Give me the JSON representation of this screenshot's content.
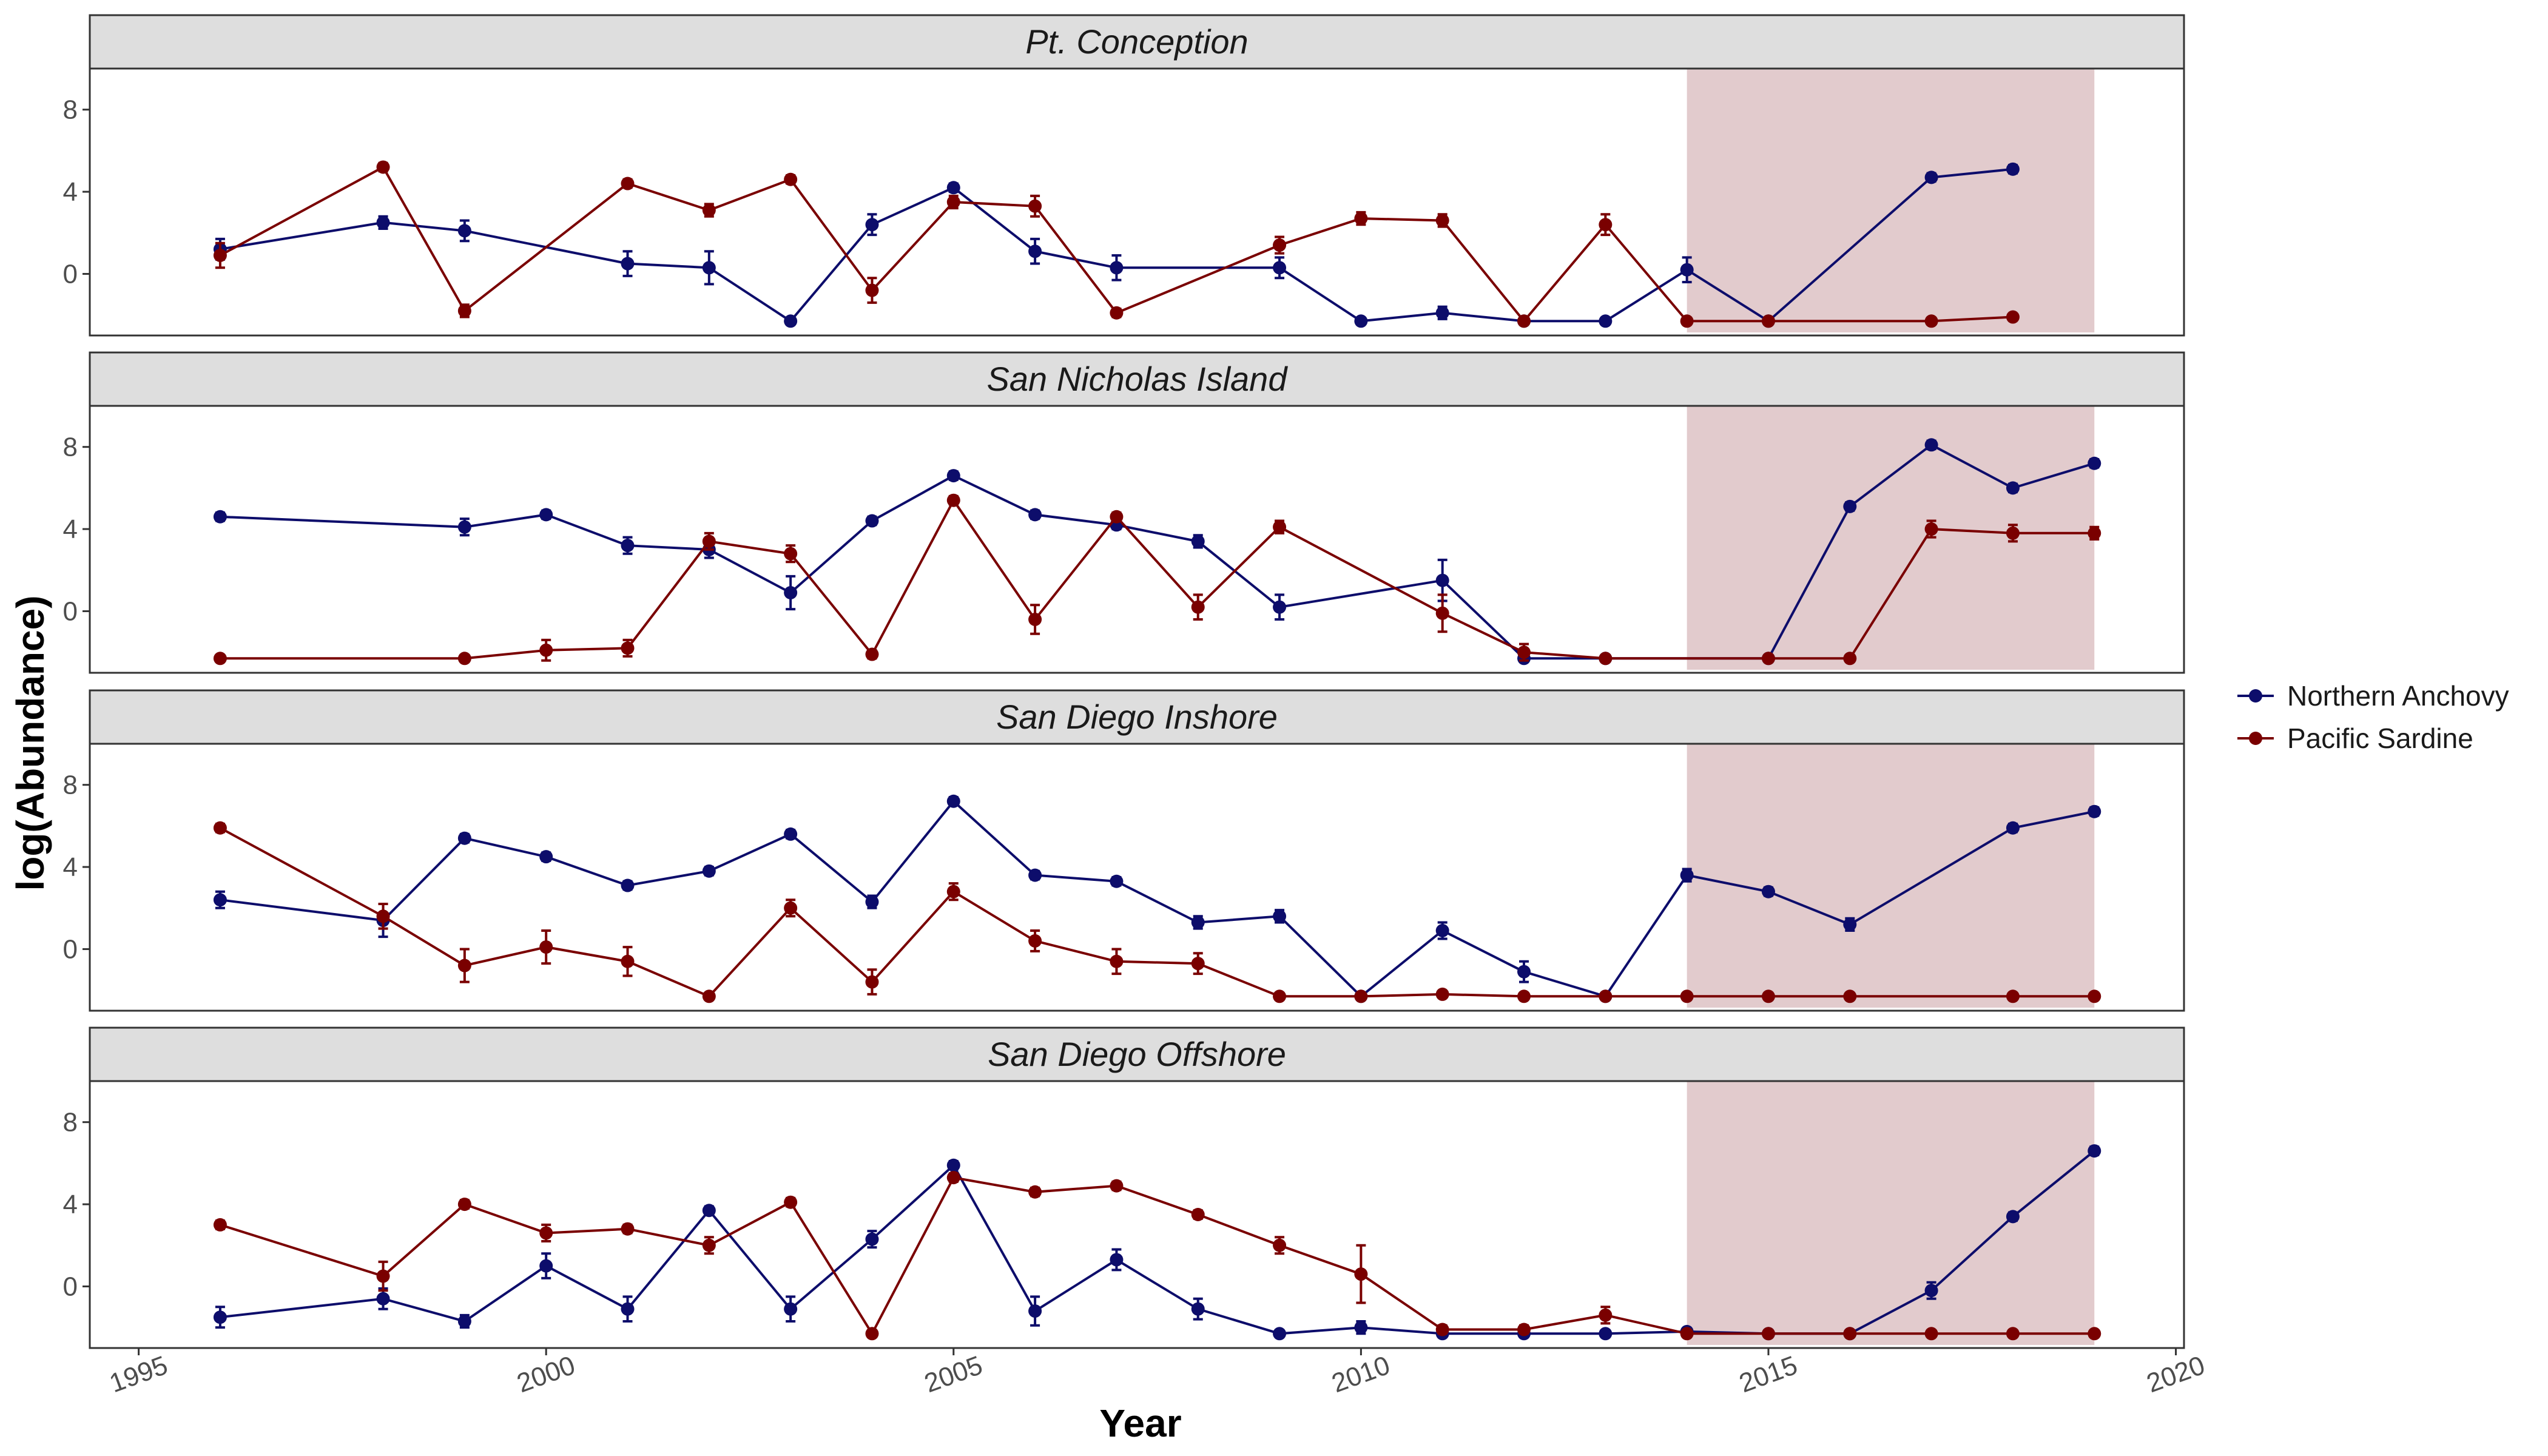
{
  "chart_data": {
    "type": "line",
    "xlabel": "Year",
    "ylabel": "log(Abundance)",
    "xlim": [
      1994.4,
      2020.1
    ],
    "ylim": [
      -3.0,
      10.0
    ],
    "x_ticks": [
      1995,
      2000,
      2005,
      2010,
      2015,
      2020
    ],
    "y_ticks": [
      0,
      4,
      8
    ],
    "shaded_region": [
      2014,
      2019
    ],
    "grid": false,
    "legend_position": "right",
    "colors": {
      "Northern Anchovy": "#0d0d6b",
      "Pacific Sardine": "#7a0000",
      "shade": "#e2cbcd",
      "strip": "#dedede"
    },
    "legend": [
      "Northern Anchovy",
      "Pacific Sardine"
    ],
    "panels": [
      {
        "name": "Pt. Conception",
        "series": [
          {
            "name": "Northern Anchovy",
            "x": [
              1996,
              1998,
              1999,
              2001,
              2002,
              2003,
              2004,
              2005,
              2006,
              2007,
              2009,
              2010,
              2011,
              2012,
              2013,
              2014,
              2015,
              2017,
              2018
            ],
            "y": [
              1.2,
              2.5,
              2.1,
              0.5,
              0.3,
              -2.3,
              2.4,
              4.2,
              1.1,
              0.3,
              0.3,
              -2.3,
              -1.9,
              -2.3,
              -2.3,
              0.2,
              -2.3,
              4.7,
              5.1
            ],
            "err": [
              0.5,
              0.3,
              0.5,
              0.6,
              0.8,
              0,
              0.5,
              0.2,
              0.6,
              0.6,
              0.5,
              0,
              0.3,
              0,
              0,
              0.6,
              0,
              0.2,
              0.2
            ]
          },
          {
            "name": "Pacific Sardine",
            "x": [
              1996,
              1998,
              1999,
              2001,
              2002,
              2003,
              2004,
              2005,
              2006,
              2007,
              2009,
              2010,
              2011,
              2012,
              2013,
              2014,
              2015,
              2017,
              2018
            ],
            "y": [
              0.9,
              5.2,
              -1.8,
              4.4,
              3.1,
              4.6,
              -0.8,
              3.5,
              3.3,
              -1.9,
              1.4,
              2.7,
              2.6,
              -2.3,
              2.4,
              -2.3,
              -2.3,
              -2.3,
              -2.1
            ],
            "err": [
              0.6,
              0.2,
              0.3,
              0.2,
              0.3,
              0.2,
              0.6,
              0.3,
              0.5,
              0.2,
              0.4,
              0.3,
              0.3,
              0,
              0.5,
              0,
              0,
              0,
              0.1
            ]
          }
        ]
      },
      {
        "name": "San Nicholas Island",
        "series": [
          {
            "name": "Northern Anchovy",
            "x": [
              1996,
              1999,
              2000,
              2001,
              2002,
              2003,
              2004,
              2005,
              2006,
              2007,
              2008,
              2009,
              2011,
              2012,
              2013,
              2015,
              2016,
              2017,
              2018,
              2019
            ],
            "y": [
              4.6,
              4.1,
              4.7,
              3.2,
              3.0,
              0.9,
              4.4,
              6.6,
              4.7,
              4.2,
              3.4,
              0.2,
              1.5,
              -2.3,
              -2.3,
              -2.3,
              5.1,
              8.1,
              6.0,
              7.2
            ],
            "err": [
              0.2,
              0.4,
              0.2,
              0.4,
              0.4,
              0.8,
              0.2,
              0.2,
              0.2,
              0.2,
              0.3,
              0.6,
              1.0,
              0,
              0,
              0,
              0.2,
              0.2,
              0.2,
              0.2
            ]
          },
          {
            "name": "Pacific Sardine",
            "x": [
              1996,
              1999,
              2000,
              2001,
              2002,
              2003,
              2004,
              2005,
              2006,
              2007,
              2008,
              2009,
              2011,
              2012,
              2013,
              2015,
              2016,
              2017,
              2018,
              2019
            ],
            "y": [
              -2.3,
              -2.3,
              -1.9,
              -1.8,
              3.4,
              2.8,
              -2.1,
              5.4,
              -0.4,
              4.6,
              0.2,
              4.1,
              -0.1,
              -2.0,
              -2.3,
              -2.3,
              -2.3,
              4.0,
              3.8,
              3.8
            ],
            "err": [
              0,
              0,
              0.5,
              0.4,
              0.4,
              0.4,
              0.2,
              0.2,
              0.7,
              0.2,
              0.6,
              0.3,
              0.9,
              0.4,
              0,
              0,
              0,
              0.4,
              0.4,
              0.3
            ]
          }
        ]
      },
      {
        "name": "San Diego Inshore",
        "series": [
          {
            "name": "Northern Anchovy",
            "x": [
              1996,
              1998,
              1999,
              2000,
              2001,
              2002,
              2003,
              2004,
              2005,
              2006,
              2007,
              2008,
              2009,
              2010,
              2011,
              2012,
              2013,
              2014,
              2015,
              2016,
              2018,
              2019
            ],
            "y": [
              2.4,
              1.4,
              5.4,
              4.5,
              3.1,
              3.8,
              5.6,
              2.3,
              7.2,
              3.6,
              3.3,
              1.3,
              1.6,
              -2.3,
              0.9,
              -1.1,
              -2.3,
              3.6,
              2.8,
              1.2,
              5.9,
              6.7
            ],
            "err": [
              0.4,
              0.8,
              0.2,
              0.2,
              0.2,
              0.2,
              0.2,
              0.3,
              0.2,
              0.2,
              0.2,
              0.3,
              0.3,
              0,
              0.4,
              0.5,
              0,
              0.3,
              0.2,
              0.3,
              0.2,
              0.2
            ]
          },
          {
            "name": "Pacific Sardine",
            "x": [
              1996,
              1998,
              1999,
              2000,
              2001,
              2002,
              2003,
              2004,
              2005,
              2006,
              2007,
              2008,
              2009,
              2010,
              2011,
              2012,
              2013,
              2014,
              2015,
              2016,
              2018,
              2019
            ],
            "y": [
              5.9,
              1.6,
              -0.8,
              0.1,
              -0.6,
              -2.3,
              2.0,
              -1.6,
              2.8,
              0.4,
              -0.6,
              -0.7,
              -2.3,
              -2.3,
              -2.2,
              -2.3,
              -2.3,
              -2.3,
              -2.3,
              -2.3,
              -2.3,
              -2.3
            ],
            "err": [
              0.2,
              0.6,
              0.8,
              0.8,
              0.7,
              0,
              0.4,
              0.6,
              0.4,
              0.5,
              0.6,
              0.5,
              0,
              0,
              0,
              0,
              0,
              0,
              0,
              0,
              0,
              0
            ]
          }
        ]
      },
      {
        "name": "San Diego Offshore",
        "series": [
          {
            "name": "Northern Anchovy",
            "x": [
              1996,
              1998,
              1999,
              2000,
              2001,
              2002,
              2003,
              2004,
              2005,
              2006,
              2007,
              2008,
              2009,
              2010,
              2011,
              2012,
              2013,
              2014,
              2015,
              2016,
              2017,
              2018,
              2019
            ],
            "y": [
              -1.5,
              -0.6,
              -1.7,
              1.0,
              -1.1,
              3.7,
              -1.1,
              2.3,
              5.9,
              -1.2,
              1.3,
              -1.1,
              -2.3,
              -2.0,
              -2.3,
              -2.3,
              -2.3,
              -2.2,
              -2.3,
              -2.3,
              -0.2,
              3.4,
              6.6
            ],
            "err": [
              0.5,
              0.5,
              0.3,
              0.6,
              0.6,
              0.2,
              0.6,
              0.4,
              0.2,
              0.7,
              0.5,
              0.5,
              0,
              0.3,
              0,
              0,
              0,
              0,
              0,
              0,
              0.4,
              0.2,
              0.2
            ]
          },
          {
            "name": "Pacific Sardine",
            "x": [
              1996,
              1998,
              1999,
              2000,
              2001,
              2002,
              2003,
              2004,
              2005,
              2006,
              2007,
              2008,
              2009,
              2010,
              2011,
              2012,
              2013,
              2014,
              2015,
              2016,
              2017,
              2018,
              2019
            ],
            "y": [
              3.0,
              0.5,
              4.0,
              2.6,
              2.8,
              2.0,
              4.1,
              -2.3,
              5.3,
              4.6,
              4.9,
              3.5,
              2.0,
              0.6,
              -2.1,
              -2.1,
              -1.4,
              -2.3,
              -2.3,
              -2.3,
              -2.3,
              -2.3,
              -2.3
            ],
            "err": [
              0.2,
              0.7,
              0.2,
              0.4,
              0.2,
              0.4,
              0.2,
              0,
              0.2,
              0.2,
              0.2,
              0.2,
              0.4,
              1.4,
              0.2,
              0.2,
              0.4,
              0,
              0,
              0,
              0,
              0,
              0
            ]
          }
        ]
      }
    ]
  }
}
